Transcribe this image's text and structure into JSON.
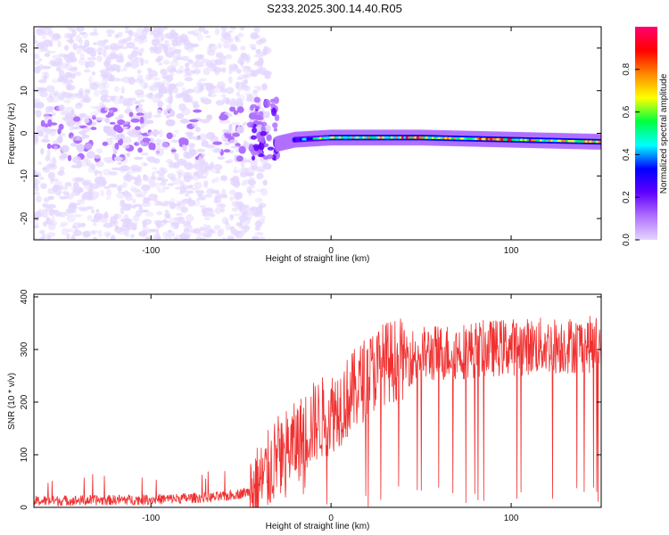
{
  "title": "S233.2025.300.14.40.R05",
  "colors": {
    "snr_line": "#f03030",
    "frame": "#000000",
    "low_amp": "#7a1dff",
    "colorbar_stops": [
      "#e4d6ff",
      "#b070ff",
      "#6000ff",
      "#0000ff",
      "#00ffff",
      "#00ff40",
      "#ffff00",
      "#ff8800",
      "#ff0000",
      "#ff0070"
    ]
  },
  "chart_data": [
    {
      "type": "heatmap",
      "name": "spectrogram",
      "xlabel": "Height of straight line (km)",
      "ylabel": "Frequency (Hz)",
      "xlim": [
        -165,
        150
      ],
      "ylim": [
        -25,
        25
      ],
      "xticks": [
        -100,
        0,
        100
      ],
      "xtick_labels": [
        "-100",
        "0",
        "100"
      ],
      "yticks": [
        -20,
        -10,
        0,
        10,
        20
      ],
      "ytick_labels": [
        "-20",
        "-10",
        "0",
        "10",
        "20"
      ],
      "colorbar": {
        "label": "Normalized spectral amplitude",
        "range": [
          0,
          1
        ],
        "ticks": [
          0.0,
          0.2,
          0.4,
          0.6,
          0.8
        ],
        "tick_labels": [
          "0.0",
          "0.2",
          "0.4",
          "0.6",
          "0.8"
        ]
      },
      "features": {
        "noise_region_km": [
          -165,
          -45
        ],
        "noise_freq_hz": [
          -25,
          25
        ],
        "transition_km": [
          -45,
          -30
        ],
        "signal_track": [
          {
            "height_km": -30,
            "freq_hz": -2.5,
            "amp": 0.35
          },
          {
            "height_km": -20,
            "freq_hz": -1.5,
            "amp": 0.5
          },
          {
            "height_km": 0,
            "freq_hz": -1.0,
            "amp": 0.75
          },
          {
            "height_km": 50,
            "freq_hz": -1.0,
            "amp": 0.9
          },
          {
            "height_km": 100,
            "freq_hz": -1.5,
            "amp": 0.9
          },
          {
            "height_km": 150,
            "freq_hz": -2.0,
            "amp": 0.8
          }
        ]
      }
    },
    {
      "type": "line",
      "name": "snr",
      "xlabel": "Height of straight line (km)",
      "ylabel": "SNR (10 * v/v)",
      "xlim": [
        -165,
        150
      ],
      "ylim": [
        0,
        405
      ],
      "xticks": [
        -100,
        0,
        100
      ],
      "xtick_labels": [
        "-100",
        "0",
        "100"
      ],
      "yticks": [
        0,
        100,
        200,
        300,
        400
      ],
      "ytick_labels": [
        "0",
        "100",
        "200",
        "300",
        "400"
      ],
      "trend": {
        "x": [
          -165,
          -100,
          -60,
          -45,
          -38,
          -30,
          -20,
          -10,
          0,
          10,
          20,
          30,
          50,
          80,
          100,
          150
        ],
        "y": [
          12,
          15,
          20,
          30,
          50,
          95,
          120,
          160,
          180,
          210,
          250,
          275,
          290,
          300,
          305,
          310
        ]
      }
    }
  ]
}
